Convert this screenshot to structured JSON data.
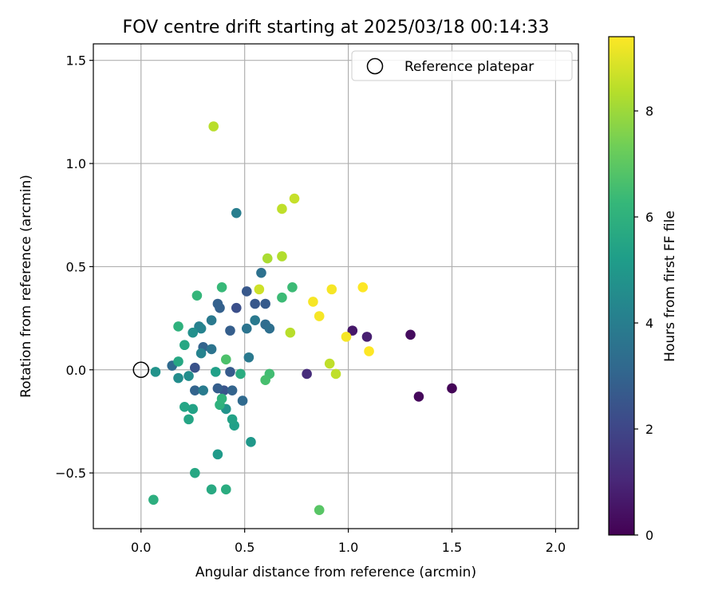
{
  "chart_data": {
    "type": "scatter",
    "title": "FOV centre drift starting at 2025/03/18 00:14:33",
    "xlabel": "Angular distance from reference (arcmin)",
    "ylabel": "Rotation from reference (arcmin)",
    "xlim": [
      -0.23,
      2.11
    ],
    "ylim": [
      -0.77,
      1.58
    ],
    "x_ticks": [
      "0.0",
      "0.5",
      "1.0",
      "1.5",
      "2.0"
    ],
    "x_tick_values": [
      0,
      0.5,
      1.0,
      1.5,
      2.0
    ],
    "y_ticks": [
      "−0.5",
      "0.0",
      "0.5",
      "1.0",
      "1.5"
    ],
    "y_tick_values": [
      -0.5,
      0,
      0.5,
      1.0,
      1.5
    ],
    "grid": true,
    "legend": {
      "position": "top-right",
      "entries": [
        "Reference platepar"
      ]
    },
    "reference_point": {
      "x": 0.0,
      "y": 0.0,
      "marker": "hollow-circle",
      "color": "#000000"
    },
    "colorbar": {
      "label": "Hours from first FF file",
      "range": [
        0,
        9.4
      ],
      "ticks": [
        "0",
        "2",
        "4",
        "6",
        "8"
      ],
      "tick_values": [
        0,
        2,
        4,
        6,
        8
      ],
      "colormap": "viridis"
    },
    "colormap_stops": [
      "#440154",
      "#482878",
      "#3e4989",
      "#31688e",
      "#26828e",
      "#1f9e89",
      "#35b779",
      "#6ece58",
      "#b5de2b",
      "#fde725"
    ],
    "series": [
      {
        "points": [
          {
            "x": 1.5,
            "y": -0.09,
            "h": 0.1
          },
          {
            "x": 1.34,
            "y": -0.13,
            "h": 0.2
          },
          {
            "x": 1.3,
            "y": 0.17,
            "h": 0.3
          },
          {
            "x": 1.02,
            "y": 0.19,
            "h": 0.6
          },
          {
            "x": 1.09,
            "y": 0.16,
            "h": 0.8
          },
          {
            "x": 0.8,
            "y": -0.02,
            "h": 1.2
          },
          {
            "x": 0.46,
            "y": 0.3,
            "h": 2.3
          },
          {
            "x": 0.51,
            "y": 0.38,
            "h": 2.6
          },
          {
            "x": 0.55,
            "y": 0.32,
            "h": 2.6
          },
          {
            "x": 0.6,
            "y": 0.32,
            "h": 2.7
          },
          {
            "x": 0.43,
            "y": 0.19,
            "h": 2.8
          },
          {
            "x": 0.38,
            "y": 0.3,
            "h": 2.9
          },
          {
            "x": 0.37,
            "y": 0.32,
            "h": 2.9
          },
          {
            "x": 0.4,
            "y": -0.1,
            "h": 2.5
          },
          {
            "x": 0.37,
            "y": -0.09,
            "h": 2.8
          },
          {
            "x": 0.43,
            "y": -0.01,
            "h": 2.7
          },
          {
            "x": 0.26,
            "y": 0.01,
            "h": 2.4
          },
          {
            "x": 0.26,
            "y": -0.1,
            "h": 3.0
          },
          {
            "x": 0.3,
            "y": 0.11,
            "h": 3.0
          },
          {
            "x": 0.15,
            "y": 0.02,
            "h": 3.2
          },
          {
            "x": 0.49,
            "y": -0.15,
            "h": 3.2
          },
          {
            "x": 0.44,
            "y": -0.1,
            "h": 3.0
          },
          {
            "x": 0.6,
            "y": 0.22,
            "h": 3.3
          },
          {
            "x": 0.62,
            "y": 0.2,
            "h": 3.4
          },
          {
            "x": 0.58,
            "y": 0.47,
            "h": 3.5
          },
          {
            "x": 0.51,
            "y": 0.2,
            "h": 3.6
          },
          {
            "x": 0.52,
            "y": 0.06,
            "h": 3.8
          },
          {
            "x": 0.55,
            "y": 0.24,
            "h": 3.8
          },
          {
            "x": 0.34,
            "y": 0.1,
            "h": 3.6
          },
          {
            "x": 0.34,
            "y": 0.24,
            "h": 3.8
          },
          {
            "x": 0.46,
            "y": 0.76,
            "h": 4.0
          },
          {
            "x": 0.3,
            "y": -0.1,
            "h": 3.9
          },
          {
            "x": 0.28,
            "y": 0.21,
            "h": 4.1
          },
          {
            "x": 0.29,
            "y": 0.2,
            "h": 4.2
          },
          {
            "x": 0.29,
            "y": 0.08,
            "h": 4.2
          },
          {
            "x": 0.18,
            "y": -0.04,
            "h": 4.6
          },
          {
            "x": 0.07,
            "y": -0.01,
            "h": 4.8
          },
          {
            "x": 0.23,
            "y": -0.03,
            "h": 4.6
          },
          {
            "x": 0.25,
            "y": 0.18,
            "h": 4.7
          },
          {
            "x": 0.41,
            "y": -0.19,
            "h": 4.8
          },
          {
            "x": 0.53,
            "y": -0.35,
            "h": 5.0
          },
          {
            "x": 0.37,
            "y": -0.41,
            "h": 5.1
          },
          {
            "x": 0.36,
            "y": -0.01,
            "h": 5.3
          },
          {
            "x": 0.45,
            "y": -0.27,
            "h": 5.3
          },
          {
            "x": 0.44,
            "y": -0.24,
            "h": 5.4
          },
          {
            "x": 0.25,
            "y": -0.19,
            "h": 5.4
          },
          {
            "x": 0.23,
            "y": -0.24,
            "h": 5.5
          },
          {
            "x": 0.21,
            "y": -0.18,
            "h": 5.5
          },
          {
            "x": 0.21,
            "y": 0.12,
            "h": 5.6
          },
          {
            "x": 0.18,
            "y": 0.04,
            "h": 5.6
          },
          {
            "x": 0.48,
            "y": -0.02,
            "h": 5.8
          },
          {
            "x": 0.26,
            "y": -0.5,
            "h": 5.6
          },
          {
            "x": 0.34,
            "y": -0.58,
            "h": 5.7
          },
          {
            "x": 0.41,
            "y": -0.58,
            "h": 5.8
          },
          {
            "x": 0.06,
            "y": -0.63,
            "h": 5.9
          },
          {
            "x": 0.38,
            "y": -0.17,
            "h": 6.0
          },
          {
            "x": 0.39,
            "y": -0.14,
            "h": 6.1
          },
          {
            "x": 0.18,
            "y": 0.21,
            "h": 6.0
          },
          {
            "x": 0.27,
            "y": 0.36,
            "h": 6.2
          },
          {
            "x": 0.39,
            "y": 0.4,
            "h": 6.3
          },
          {
            "x": 0.68,
            "y": 0.35,
            "h": 6.4
          },
          {
            "x": 0.73,
            "y": 0.4,
            "h": 6.4
          },
          {
            "x": 0.62,
            "y": -0.02,
            "h": 6.5
          },
          {
            "x": 0.6,
            "y": -0.05,
            "h": 6.6
          },
          {
            "x": 0.41,
            "y": 0.05,
            "h": 6.7
          },
          {
            "x": 0.86,
            "y": -0.68,
            "h": 6.9
          },
          {
            "x": 0.61,
            "y": 0.54,
            "h": 8.2
          },
          {
            "x": 0.68,
            "y": 0.55,
            "h": 8.3
          },
          {
            "x": 0.72,
            "y": 0.18,
            "h": 8.4
          },
          {
            "x": 0.91,
            "y": 0.03,
            "h": 8.5
          },
          {
            "x": 0.94,
            "y": -0.02,
            "h": 8.5
          },
          {
            "x": 0.35,
            "y": 1.18,
            "h": 8.4
          },
          {
            "x": 0.68,
            "y": 0.78,
            "h": 8.5
          },
          {
            "x": 0.74,
            "y": 0.83,
            "h": 8.6
          },
          {
            "x": 0.57,
            "y": 0.39,
            "h": 8.7
          },
          {
            "x": 0.83,
            "y": 0.33,
            "h": 9.3
          },
          {
            "x": 0.86,
            "y": 0.26,
            "h": 9.3
          },
          {
            "x": 0.92,
            "y": 0.39,
            "h": 9.3
          },
          {
            "x": 0.99,
            "y": 0.16,
            "h": 9.3
          },
          {
            "x": 1.07,
            "y": 0.4,
            "h": 9.4
          },
          {
            "x": 1.1,
            "y": 0.09,
            "h": 9.4
          }
        ]
      }
    ]
  }
}
